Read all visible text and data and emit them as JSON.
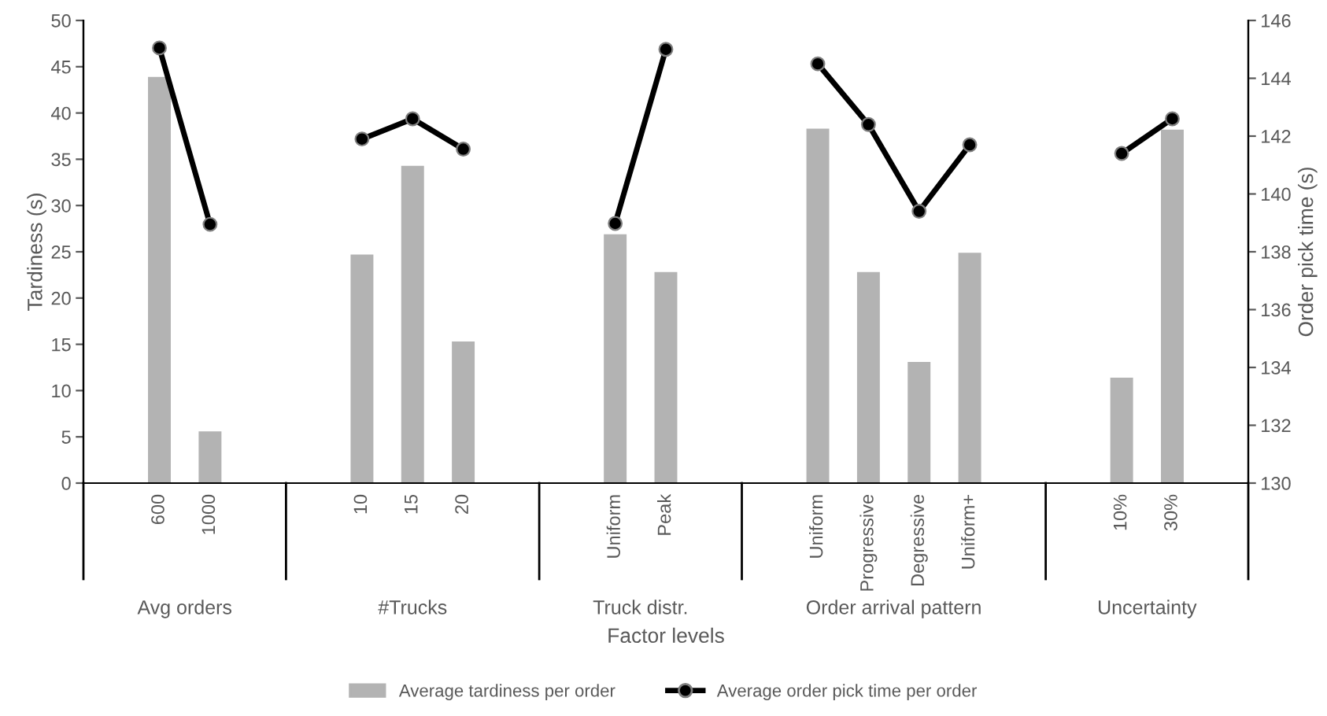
{
  "chart_data": {
    "type": "bar",
    "xlabel": "Factor levels",
    "ylabel": "Tardiness (s)",
    "y2label": "Order pick time (s)",
    "categories": [
      null,
      "600",
      "1000",
      null,
      null,
      "10",
      "15",
      "20",
      null,
      null,
      "Uniform",
      "Peak",
      null,
      null,
      "Uniform",
      "Progressive",
      "Degressive",
      "Uniform+",
      null,
      null,
      "10%",
      "30%",
      null
    ],
    "series": [
      {
        "name": "Average tardiness per order",
        "color": "#b3b3b3",
        "values": [
          null,
          43.9,
          5.6,
          null,
          null,
          24.7,
          34.3,
          15.3,
          null,
          null,
          26.9,
          22.8,
          null,
          null,
          38.3,
          22.8,
          13.1,
          24.9,
          null,
          null,
          11.4,
          38.2,
          null
        ]
      },
      {
        "name": "Average order pick time per order",
        "type": "line",
        "axis": "y2",
        "color": "#000000",
        "marker": "circle",
        "line_style": "solid",
        "values": [
          null,
          145.05,
          138.95,
          null,
          null,
          141.9,
          142.6,
          141.55,
          null,
          null,
          138.98,
          145.0,
          null,
          null,
          144.5,
          142.4,
          139.4,
          141.7,
          null,
          null,
          141.4,
          142.6,
          null
        ]
      }
    ],
    "annotations": [
      "Avg orders",
      "#Trucks",
      "Truck distr.",
      "Order arrival pattern",
      "Uncertainty"
    ],
    "ylim": [
      0,
      50
    ],
    "yticks": [
      0,
      5,
      10,
      15,
      20,
      25,
      30,
      35,
      40,
      45,
      50
    ],
    "y2lim": [
      130,
      146
    ],
    "y2ticks": [
      130,
      132,
      134,
      136,
      138,
      140,
      142,
      144,
      146
    ],
    "grid": false,
    "legend": "bottom"
  }
}
